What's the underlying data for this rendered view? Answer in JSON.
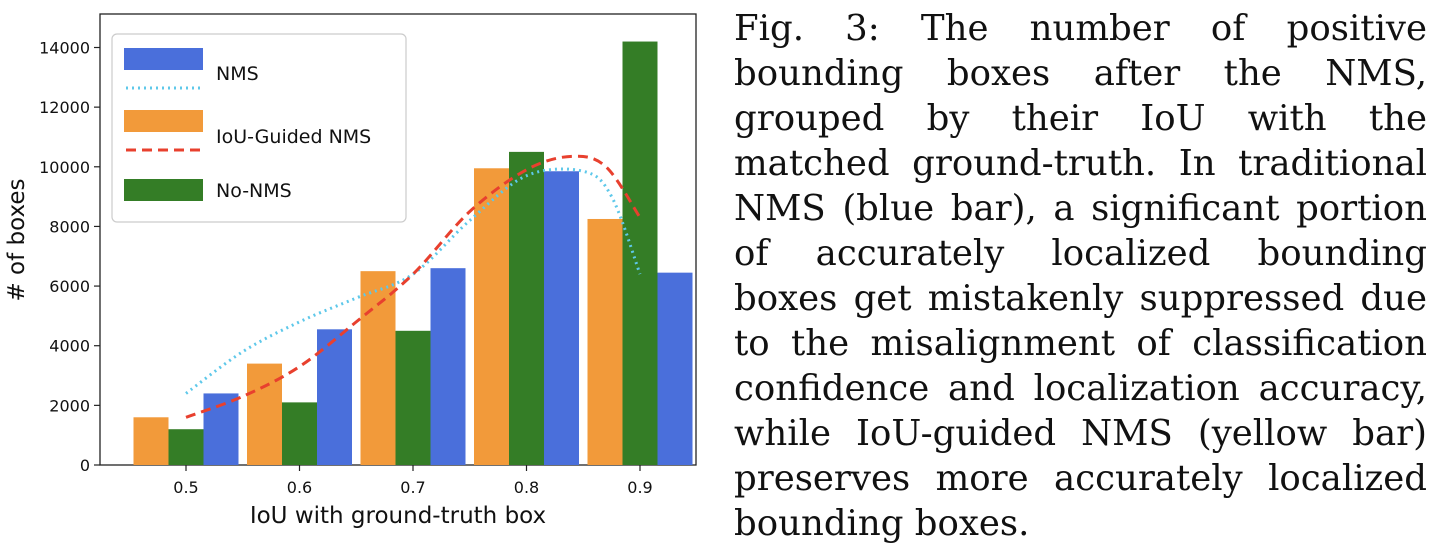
{
  "chart_data": {
    "type": "bar",
    "categories": [
      "0.5",
      "0.6",
      "0.7",
      "0.8",
      "0.9"
    ],
    "series": [
      {
        "name": "IoU-Guided NMS",
        "values": [
          1600,
          3400,
          6500,
          9950,
          8250
        ],
        "color": "#f29a3a"
      },
      {
        "name": "No-NMS",
        "values": [
          1200,
          2100,
          4500,
          10500,
          14200
        ],
        "color": "#347d26"
      },
      {
        "name": "NMS",
        "values": [
          2400,
          4550,
          6600,
          9850,
          6450
        ],
        "color": "#4a6fdb"
      }
    ],
    "curves": [
      {
        "name": "NMS",
        "style": "dotted",
        "color": "#5ec8ea",
        "x": [
          0.5,
          0.55,
          0.6,
          0.65,
          0.7,
          0.75,
          0.8,
          0.85,
          0.875,
          0.9
        ],
        "y": [
          2400,
          3800,
          4800,
          5600,
          6400,
          8200,
          9700,
          9850,
          9000,
          6400
        ]
      },
      {
        "name": "IoU-Guided NMS",
        "style": "dashed",
        "color": "#e8402e",
        "x": [
          0.5,
          0.55,
          0.6,
          0.65,
          0.7,
          0.75,
          0.8,
          0.84,
          0.87,
          0.9
        ],
        "y": [
          1600,
          2300,
          3300,
          4800,
          6400,
          8500,
          9900,
          10350,
          10000,
          8300
        ]
      }
    ],
    "legend": {
      "position": "top-left",
      "entries": [
        {
          "label": "NMS",
          "kind": "bar",
          "color": "#4a6fdb"
        },
        {
          "label": "",
          "kind": "line-dotted",
          "color": "#5ec8ea"
        },
        {
          "label": "IoU-Guided NMS",
          "kind": "bar",
          "color": "#f29a3a"
        },
        {
          "label": "",
          "kind": "line-dashed",
          "color": "#e8402e"
        },
        {
          "label": "No-NMS",
          "kind": "bar",
          "color": "#347d26"
        }
      ]
    },
    "xlabel": "IoU with ground-truth box",
    "ylabel": "# of boxes",
    "ylim": [
      0,
      15000
    ],
    "yticks": [
      0,
      2000,
      4000,
      6000,
      8000,
      10000,
      12000,
      14000
    ],
    "grid": false
  },
  "caption": "Fig. 3: The number of positive bounding boxes after the NMS, grouped by their IoU with the matched ground-truth. In traditional NMS (blue bar), a significant portion of accurately localized bounding boxes get mistakenly suppressed due to the misalignment of classification confidence and localization accuracy, while IoU-guided NMS (yellow bar) preserves more accurately localized bounding boxes."
}
